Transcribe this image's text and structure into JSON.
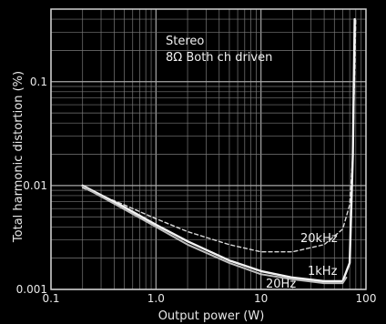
{
  "chart_data": {
    "type": "line",
    "xlabel": "Output power (W)",
    "ylabel": "Total harmonic distortion (%)",
    "x_scale": "log",
    "y_scale": "log",
    "xlim": [
      0.1,
      100
    ],
    "ylim": [
      0.001,
      0.5
    ],
    "grid": true,
    "x_ticks": [
      {
        "value": 0.1,
        "label": "0.1"
      },
      {
        "value": 1,
        "label": "1.0"
      },
      {
        "value": 10,
        "label": "10"
      },
      {
        "value": 100,
        "label": "100"
      }
    ],
    "y_ticks": [
      {
        "value": 0.001,
        "label": "0.001"
      },
      {
        "value": 0.01,
        "label": "0.01"
      },
      {
        "value": 0.1,
        "label": "0.1"
      }
    ],
    "annotations": [
      "Stereo",
      "8Ω Both ch driven"
    ],
    "series": [
      {
        "name": "20kHz",
        "style": "dashed",
        "color": "#d8d8d8",
        "x": [
          0.2,
          0.5,
          1,
          2,
          5,
          10,
          20,
          40,
          60,
          70,
          75,
          80
        ],
        "y": [
          0.0095,
          0.0065,
          0.0048,
          0.0036,
          0.0027,
          0.0023,
          0.0023,
          0.0027,
          0.0038,
          0.0065,
          0.02,
          0.4
        ]
      },
      {
        "name": "1kHz",
        "style": "solid",
        "color": "#f4f4f4",
        "x": [
          0.2,
          0.5,
          1,
          2,
          5,
          10,
          20,
          40,
          60,
          70,
          75,
          78
        ],
        "y": [
          0.01,
          0.0062,
          0.0042,
          0.0029,
          0.0019,
          0.0015,
          0.0013,
          0.0012,
          0.0012,
          0.0018,
          0.02,
          0.4
        ]
      },
      {
        "name": "20Hz",
        "style": "solid",
        "color": "#bdbdbd",
        "x": [
          0.2,
          0.5,
          1,
          2,
          5,
          10,
          20,
          40,
          60,
          65
        ],
        "y": [
          0.0098,
          0.0059,
          0.004,
          0.0027,
          0.0018,
          0.0014,
          0.00125,
          0.00115,
          0.00115,
          0.0013
        ]
      }
    ]
  }
}
